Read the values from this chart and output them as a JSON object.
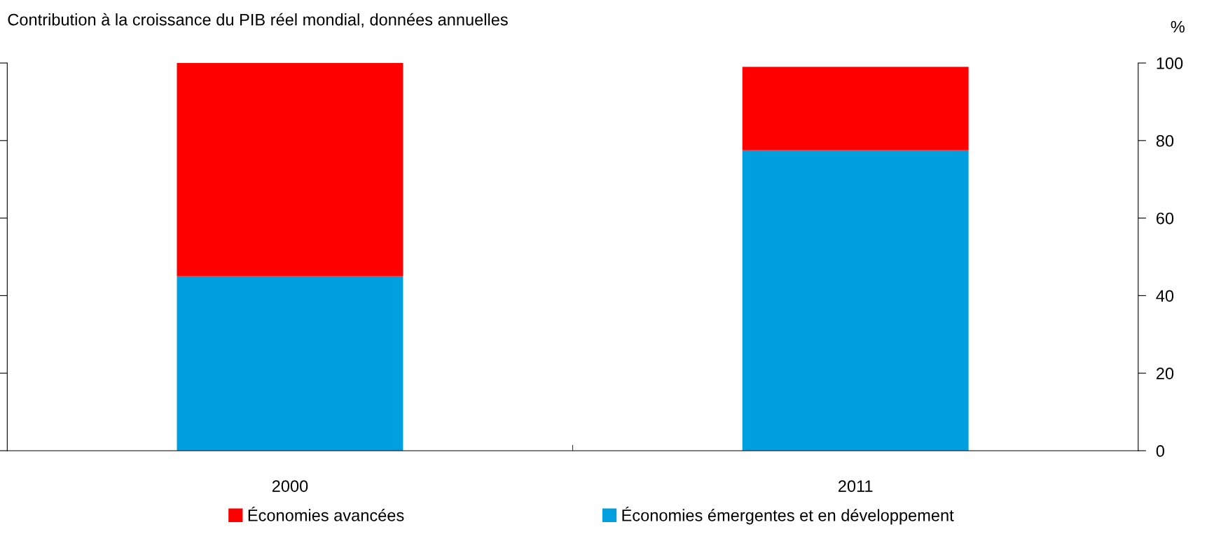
{
  "chart_data": {
    "type": "bar",
    "stacked": true,
    "title": "Contribution à la croissance du PIB réel mondial, données annuelles",
    "ylabel": "%",
    "categories": [
      "2000",
      "2011"
    ],
    "series": [
      {
        "name": "Économies émergentes et en développement",
        "color": "#009fe0",
        "values": [
          45,
          77.5
        ]
      },
      {
        "name": "Économies avancées",
        "color": "#ff0000",
        "values": [
          55,
          21.5
        ]
      }
    ],
    "ylim": [
      0,
      100
    ],
    "yticks": [
      0,
      20,
      40,
      60,
      80,
      100
    ],
    "grid": false,
    "legend": "bottom"
  }
}
